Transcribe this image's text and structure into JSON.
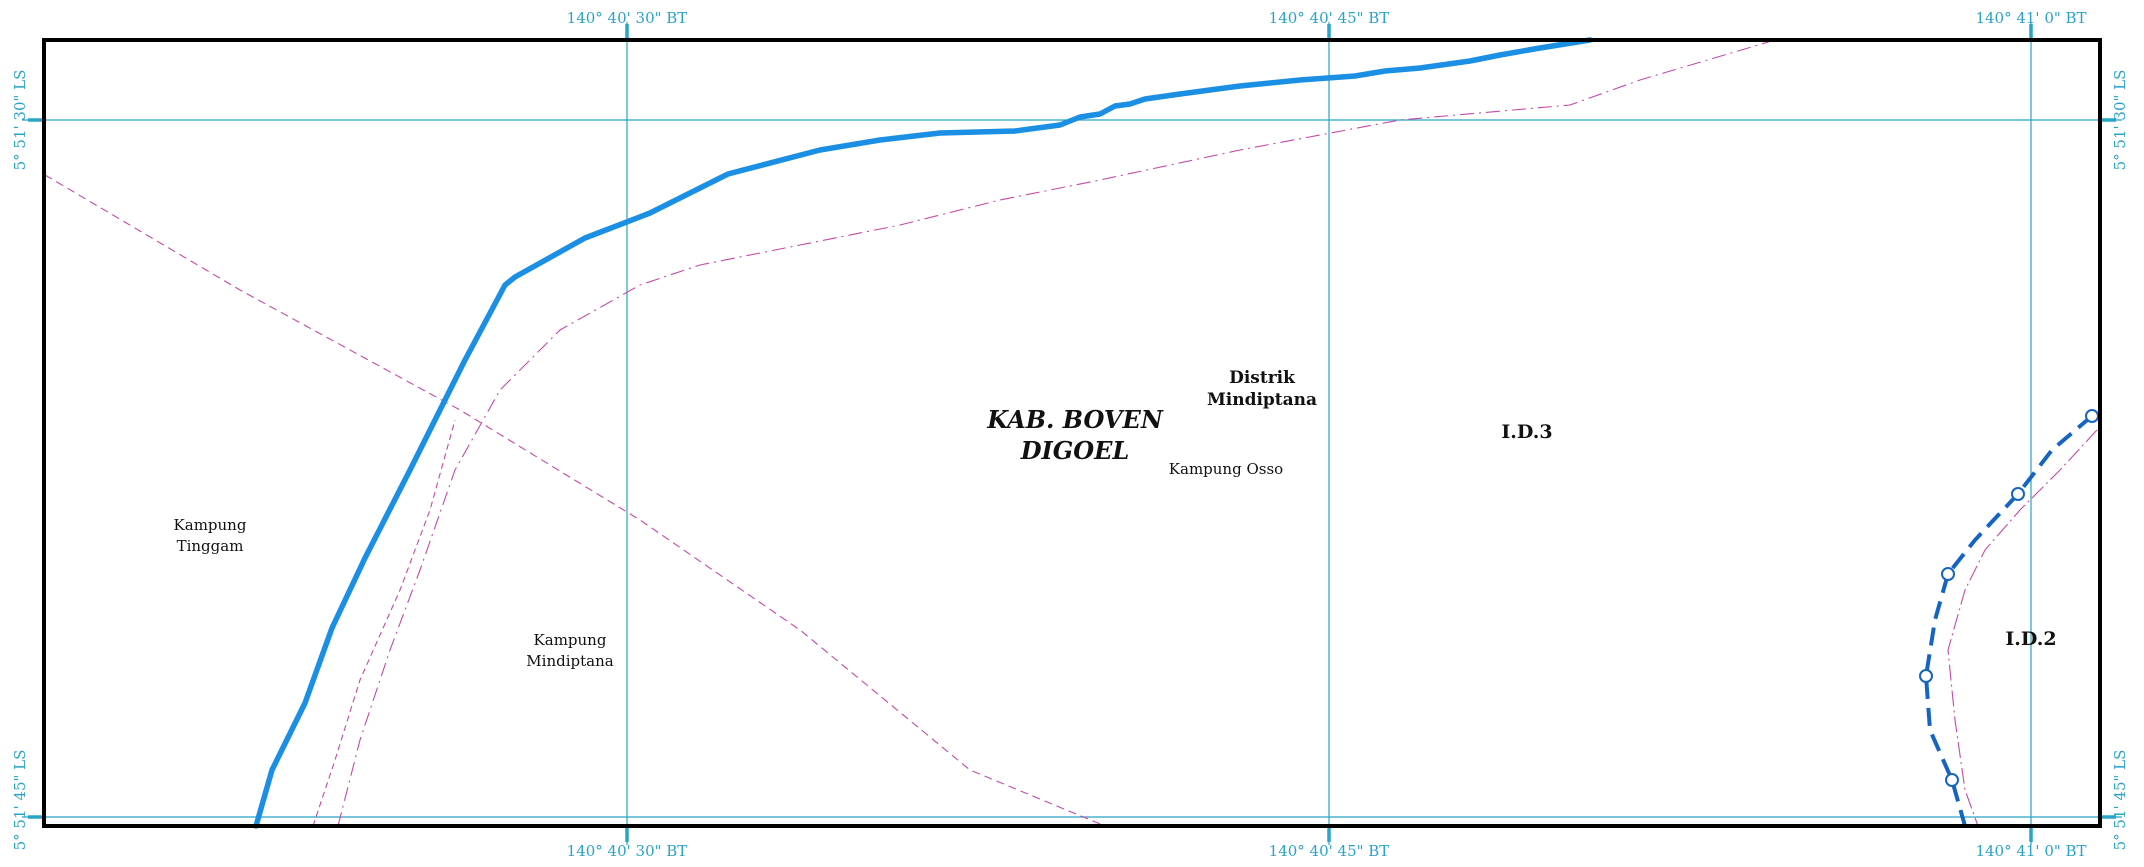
{
  "map": {
    "grid_color": "#29a3c7",
    "river_color": "#1a8fe3",
    "admin_line_color": "#c54aa8",
    "boundary_dashed_color": "#1565c0",
    "frame_color": "#000000",
    "coords": {
      "top": [
        "140° 40' 30\" BT",
        "140° 40' 45\" BT",
        "140° 41' 0\" BT"
      ],
      "bottom": [
        "140° 40' 30\" BT",
        "140° 40' 45\" BT",
        "140° 41' 0\" BT"
      ],
      "left": [
        "5° 51' 30\" LS",
        "5° 51' 45\" LS"
      ],
      "right": [
        "5° 51' 30\" LS",
        "5° 51' 45\" LS"
      ]
    },
    "labels": {
      "kabupaten_line1": "KAB. BOVEN",
      "kabupaten_line2": "DIGOEL",
      "distrik_line1": "Distrik",
      "distrik_line2": "Mindiptana",
      "kampung_osso": "Kampung Osso",
      "kampung_tinggam_line1": "Kampung",
      "kampung_tinggam_line2": "Tinggam",
      "kampung_mindiptana_line1": "Kampung",
      "kampung_mindiptana_line2": "Mindiptana",
      "zone_id3": "I.D.3",
      "zone_id2": "I.D.2"
    }
  }
}
